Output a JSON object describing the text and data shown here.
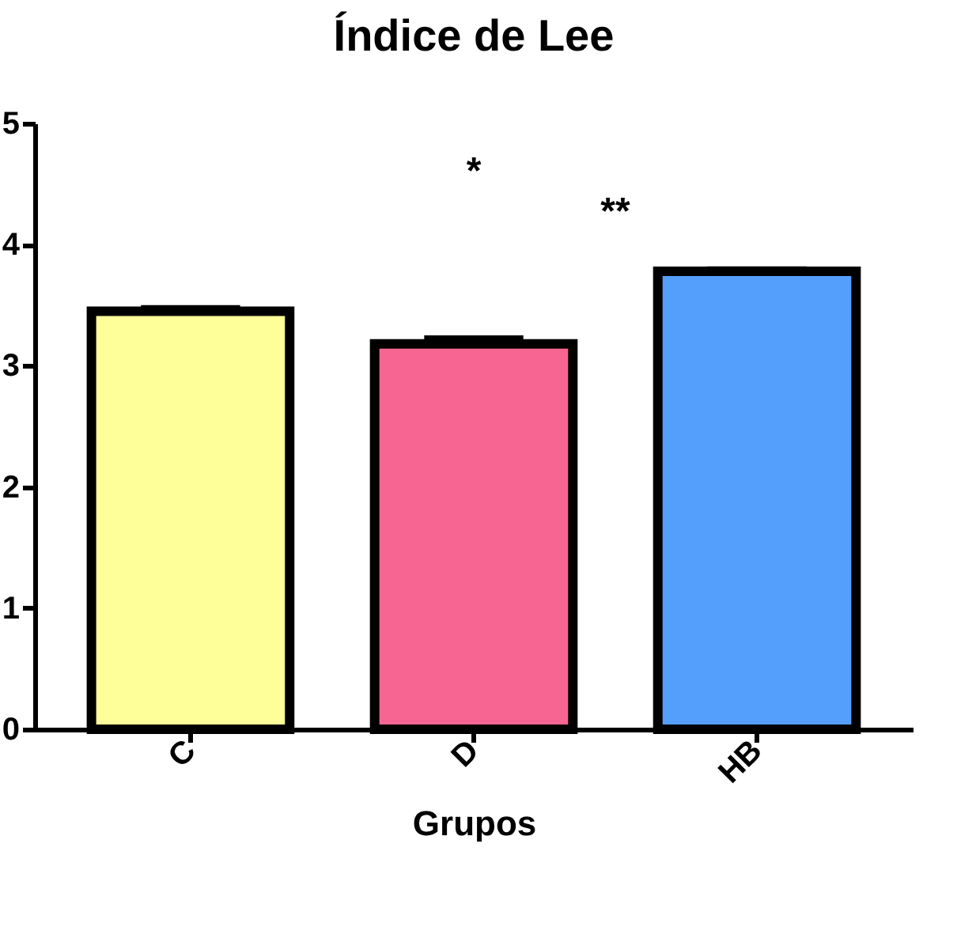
{
  "chart_data": {
    "type": "bar",
    "title": "Índice de Lee",
    "xlabel": "Grupos",
    "categories": [
      "C",
      "D",
      "HB"
    ],
    "values": [
      3.45,
      3.18,
      3.78
    ],
    "errors": [
      0.05,
      0.07,
      0.04
    ],
    "colors": [
      "#ffff99",
      "#f76692",
      "#559ffc"
    ],
    "ylim": [
      0,
      5
    ],
    "yticks": [
      0,
      1,
      2,
      3,
      4,
      5
    ],
    "grid": false,
    "legend": false,
    "annotations": [
      "*",
      "**"
    ]
  }
}
